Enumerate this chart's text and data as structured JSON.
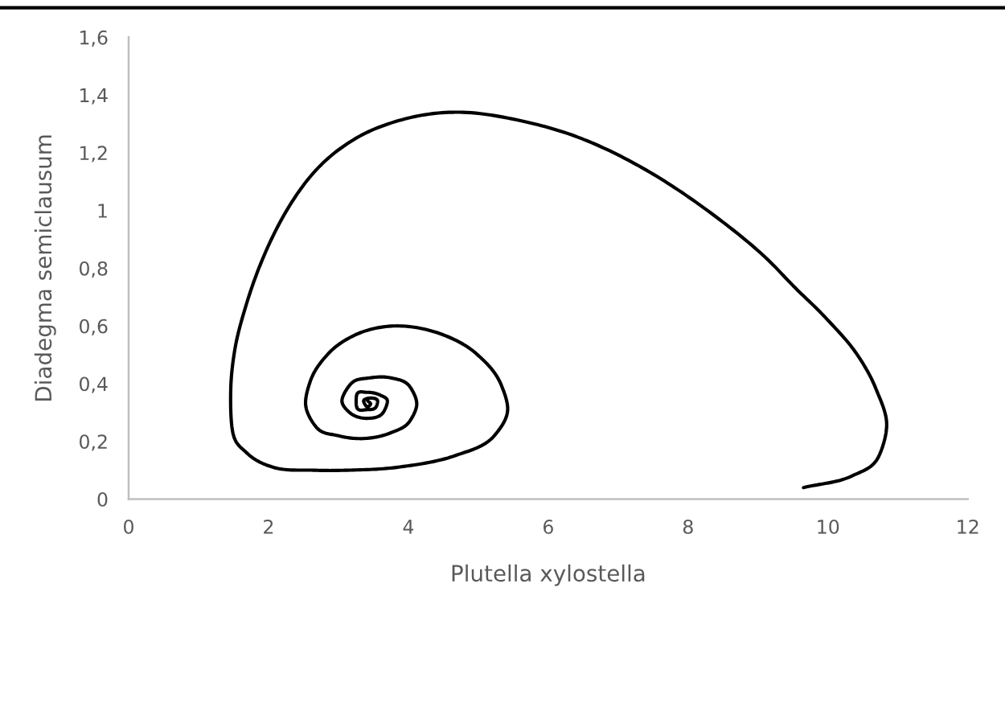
{
  "chart_data": {
    "type": "line",
    "xlabel": "Plutella xylostella",
    "ylabel": "Diadegma semiclausum",
    "color": "#000000",
    "line_style": "solid",
    "grid": false,
    "x": [
      9.65,
      10.34,
      10.73,
      10.84,
      10.69,
      10.42,
      9.96,
      9.54,
      9.05,
      8.22,
      7.4,
      6.57,
      5.8,
      4.78,
      4.0,
      3.25,
      2.68,
      2.26,
      1.93,
      1.69,
      1.52,
      1.46,
      1.49,
      1.69,
      2.07,
      2.68,
      3.09,
      3.83,
      4.66,
      5.23,
      5.42,
      5.32,
      4.99,
      4.49,
      3.83,
      3.25,
      2.84,
      2.6,
      2.53,
      2.68,
      2.99,
      3.37,
      3.75,
      4.02,
      4.12,
      4.02,
      3.75,
      3.45,
      3.18,
      3.05,
      3.16,
      3.41,
      3.64,
      3.7,
      3.6,
      3.41,
      3.26,
      3.26,
      3.41,
      3.54,
      3.56,
      3.45,
      3.36,
      3.41,
      3.46,
      3.42
    ],
    "values": [
      0.04,
      0.08,
      0.15,
      0.26,
      0.38,
      0.5,
      0.63,
      0.73,
      0.85,
      1.01,
      1.14,
      1.24,
      1.3,
      1.34,
      1.32,
      1.25,
      1.14,
      1.0,
      0.84,
      0.68,
      0.52,
      0.38,
      0.23,
      0.16,
      0.11,
      0.1,
      0.1,
      0.11,
      0.15,
      0.22,
      0.31,
      0.4,
      0.5,
      0.57,
      0.6,
      0.57,
      0.5,
      0.41,
      0.33,
      0.25,
      0.22,
      0.21,
      0.23,
      0.27,
      0.33,
      0.39,
      0.42,
      0.42,
      0.4,
      0.34,
      0.3,
      0.28,
      0.3,
      0.34,
      0.36,
      0.37,
      0.36,
      0.32,
      0.31,
      0.32,
      0.34,
      0.35,
      0.34,
      0.32,
      0.33,
      0.34
    ],
    "xlim": [
      0,
      12
    ],
    "xticks": [
      0,
      2,
      4,
      6,
      8,
      10,
      12
    ],
    "ylim": [
      0,
      1.6
    ],
    "yticks": [
      0,
      {
        "value": 0.2,
        "label": "0,2"
      },
      {
        "value": 0.4,
        "label": "0,4"
      },
      {
        "value": 0.6,
        "label": "0,6"
      },
      {
        "value": 0.8,
        "label": "0,8"
      },
      1,
      {
        "value": 1.2,
        "label": "1,2"
      },
      {
        "value": 1.4,
        "label": "1,4"
      },
      {
        "value": 1.6,
        "label": "1,6"
      }
    ]
  }
}
